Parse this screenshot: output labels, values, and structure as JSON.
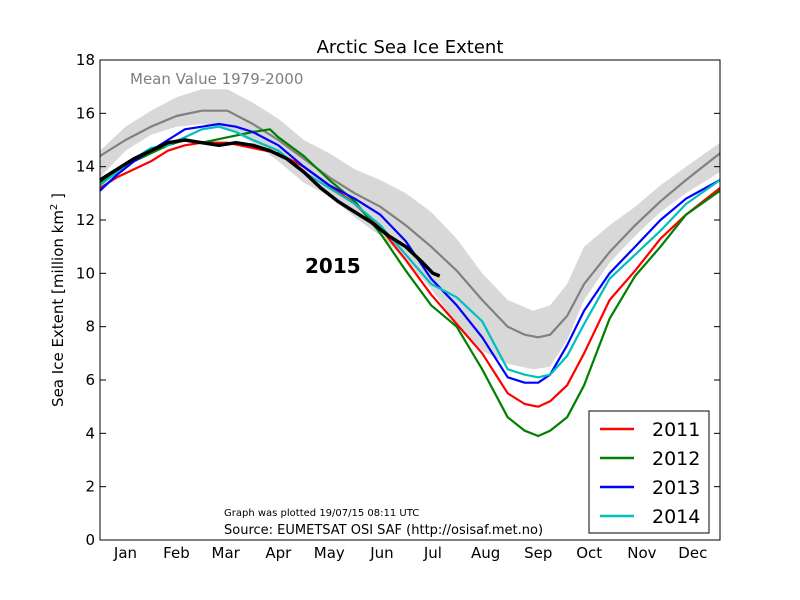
{
  "chart_data": {
    "type": "line",
    "title": "Arctic Sea Ice Extent",
    "ylabel": "Sea Ice Extent [million km",
    "ylabel_sup": "2",
    "ylabel_tail": " ]",
    "xlabel": "",
    "ylim": [
      0,
      18
    ],
    "xlim": [
      0,
      365
    ],
    "yticks": [
      0,
      2,
      4,
      6,
      8,
      10,
      12,
      14,
      16,
      18
    ],
    "month_labels": [
      "Jan",
      "Feb",
      "Mar",
      "Apr",
      "May",
      "Jun",
      "Jul",
      "Aug",
      "Sep",
      "Oct",
      "Nov",
      "Dec"
    ],
    "month_label_days": [
      15,
      45,
      74,
      105,
      135,
      166,
      196,
      227,
      258,
      288,
      319,
      349
    ],
    "grid": false,
    "legend_position": "bottom-right",
    "annotations": {
      "mean_label": "Mean Value 1979-2000",
      "year_label": "2015",
      "plotted": "Graph was plotted 19/07/15 08:11 UTC",
      "source": "Source: EUMETSAT OSI SAF (http://osisaf.met.no)"
    },
    "band": {
      "days": [
        0,
        15,
        30,
        45,
        60,
        75,
        90,
        105,
        120,
        135,
        150,
        165,
        180,
        195,
        210,
        225,
        240,
        255,
        265,
        275,
        285,
        300,
        315,
        330,
        345,
        365
      ],
      "upper": [
        14.6,
        15.5,
        16.1,
        16.6,
        16.9,
        16.9,
        16.4,
        15.8,
        15.0,
        14.5,
        13.9,
        13.5,
        13.0,
        12.3,
        11.3,
        10.0,
        9.0,
        8.6,
        8.8,
        9.6,
        11.0,
        11.8,
        12.5,
        13.3,
        14.0,
        14.9
      ],
      "lower": [
        13.6,
        14.6,
        15.2,
        15.5,
        15.6,
        15.4,
        14.9,
        14.2,
        13.4,
        12.9,
        12.1,
        11.4,
        10.5,
        9.4,
        8.1,
        7.1,
        6.6,
        6.4,
        6.5,
        7.5,
        9.0,
        10.4,
        11.4,
        12.3,
        13.0,
        13.8
      ]
    },
    "series": [
      {
        "name": "",
        "color": "#808080",
        "x": [
          0,
          15,
          30,
          45,
          60,
          75,
          90,
          105,
          120,
          135,
          150,
          165,
          180,
          195,
          210,
          225,
          240,
          250,
          258,
          265,
          275,
          285,
          300,
          315,
          330,
          345,
          365
        ],
        "y": [
          14.4,
          15.0,
          15.5,
          15.9,
          16.1,
          16.1,
          15.6,
          15.0,
          14.3,
          13.6,
          13.0,
          12.5,
          11.8,
          11.0,
          10.1,
          9.0,
          8.0,
          7.7,
          7.6,
          7.7,
          8.4,
          9.6,
          10.8,
          11.8,
          12.7,
          13.5,
          14.5
        ]
      },
      {
        "name": "2011",
        "color": "#ff0000",
        "x": [
          0,
          10,
          20,
          30,
          40,
          50,
          60,
          75,
          90,
          105,
          120,
          135,
          150,
          165,
          180,
          195,
          210,
          225,
          240,
          250,
          258,
          265,
          275,
          285,
          300,
          315,
          330,
          345,
          365
        ],
        "y": [
          13.2,
          13.6,
          13.9,
          14.2,
          14.6,
          14.8,
          14.9,
          14.9,
          14.7,
          14.5,
          14.0,
          13.3,
          12.6,
          11.7,
          10.5,
          9.2,
          8.1,
          7.0,
          5.5,
          5.1,
          5.0,
          5.2,
          5.8,
          7.0,
          9.0,
          10.1,
          11.3,
          12.2,
          13.2
        ]
      },
      {
        "name": "2012",
        "color": "#008000",
        "x": [
          0,
          10,
          20,
          30,
          40,
          50,
          60,
          75,
          90,
          100,
          105,
          120,
          135,
          150,
          165,
          180,
          195,
          210,
          225,
          240,
          250,
          258,
          265,
          275,
          285,
          300,
          315,
          330,
          345,
          365
        ],
        "y": [
          13.4,
          13.8,
          14.2,
          14.5,
          14.8,
          15.0,
          14.9,
          15.1,
          15.3,
          15.4,
          15.1,
          14.4,
          13.5,
          12.7,
          11.5,
          10.1,
          8.8,
          8.0,
          6.4,
          4.6,
          4.1,
          3.9,
          4.1,
          4.6,
          5.8,
          8.3,
          9.9,
          11.0,
          12.2,
          13.1
        ]
      },
      {
        "name": "2013",
        "color": "#0000ff",
        "x": [
          0,
          10,
          20,
          30,
          40,
          50,
          60,
          70,
          80,
          90,
          105,
          120,
          135,
          150,
          165,
          180,
          195,
          210,
          225,
          240,
          250,
          258,
          265,
          275,
          285,
          300,
          315,
          330,
          345,
          365
        ],
        "y": [
          13.1,
          13.7,
          14.2,
          14.6,
          15.0,
          15.4,
          15.5,
          15.6,
          15.5,
          15.3,
          14.8,
          14.0,
          13.3,
          12.8,
          12.2,
          11.2,
          9.8,
          8.8,
          7.6,
          6.1,
          5.9,
          5.9,
          6.2,
          7.3,
          8.6,
          10.0,
          11.0,
          12.0,
          12.8,
          13.5
        ]
      },
      {
        "name": "2014",
        "color": "#00bfbf",
        "x": [
          0,
          10,
          20,
          30,
          40,
          50,
          60,
          70,
          80,
          90,
          105,
          120,
          135,
          150,
          165,
          180,
          195,
          210,
          225,
          240,
          250,
          258,
          265,
          275,
          285,
          300,
          315,
          330,
          345,
          365
        ],
        "y": [
          13.3,
          13.8,
          14.3,
          14.7,
          14.8,
          15.1,
          15.4,
          15.5,
          15.3,
          15.0,
          14.6,
          13.8,
          13.2,
          12.6,
          11.8,
          10.7,
          9.6,
          9.1,
          8.2,
          6.4,
          6.2,
          6.1,
          6.2,
          6.9,
          8.1,
          9.8,
          10.7,
          11.6,
          12.6,
          13.5
        ]
      },
      {
        "name": "",
        "color": "#000000",
        "x": [
          0,
          10,
          20,
          30,
          40,
          50,
          60,
          70,
          80,
          90,
          100,
          110,
          120,
          130,
          140,
          150,
          160,
          170,
          180,
          190,
          196,
          200
        ],
        "y": [
          13.5,
          13.9,
          14.3,
          14.6,
          14.9,
          15.0,
          14.9,
          14.8,
          14.9,
          14.8,
          14.6,
          14.3,
          13.8,
          13.2,
          12.7,
          12.3,
          11.9,
          11.4,
          11.0,
          10.4,
          10.0,
          9.9
        ]
      }
    ]
  }
}
